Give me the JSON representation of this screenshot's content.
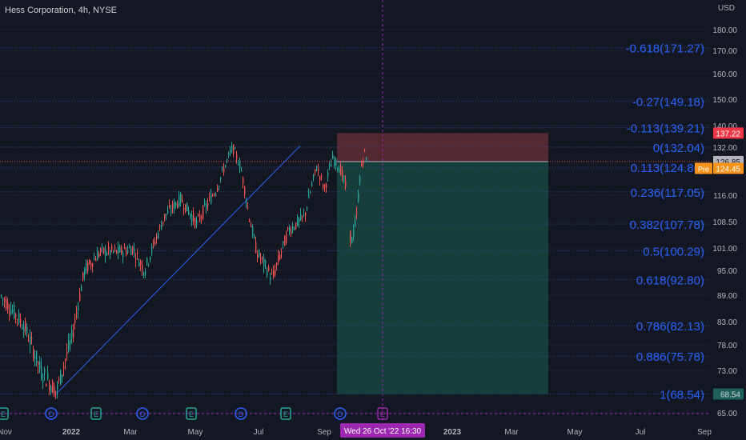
{
  "header": {
    "title": "Hess Corporation, 4h, NYSE",
    "currency": "USD"
  },
  "colors": {
    "background": "#131722",
    "grid": "#1e222d",
    "up": "#26a69a",
    "down": "#ef5350",
    "fib_text": "#2962ff",
    "fib_line": "#2c4a8c",
    "stop_zone": "#5c2a33",
    "target_zone": "#17423d",
    "current_price": "#ef5350",
    "pre_market": "#f7931a",
    "crosshair": "#9c27b0",
    "trendline": "#2962ff"
  },
  "price_axis": {
    "ticks": [
      "180.00",
      "170.00",
      "160.00",
      "150.00",
      "140.00",
      "132.00",
      "124.00",
      "116.00",
      "108.50",
      "101.00",
      "95.00",
      "89.00",
      "83.00",
      "78.00",
      "73.00",
      "65.00"
    ]
  },
  "price_labels": [
    {
      "text": "137.22",
      "kind": "stop",
      "price": 137.22
    },
    {
      "text": "126.88",
      "kind": "last",
      "price": 126.88
    },
    {
      "text": "126.85",
      "kind": "entry",
      "price": 126.85
    },
    {
      "text": "124.45",
      "kind": "pre",
      "price": 124.45,
      "tag": "Pre"
    },
    {
      "text": "68.54",
      "kind": "target",
      "price": 68.54
    }
  ],
  "fib_levels": [
    {
      "label": "-0.618(171.27)",
      "price": 171.27
    },
    {
      "label": "-0.27(149.18)",
      "price": 149.18
    },
    {
      "label": "-0.113(139.21)",
      "price": 139.21
    },
    {
      "label": "0(132.04)",
      "price": 132.04
    },
    {
      "label": "0.113(124.86)",
      "price": 124.86
    },
    {
      "label": "0.236(117.05)",
      "price": 117.05
    },
    {
      "label": "0.382(107.78)",
      "price": 107.78
    },
    {
      "label": "0.5(100.29)",
      "price": 100.29
    },
    {
      "label": "0.618(92.80)",
      "price": 92.8
    },
    {
      "label": "0.786(82.13)",
      "price": 82.13
    },
    {
      "label": "0.886(75.78)",
      "price": 75.78
    },
    {
      "label": "1(68.54)",
      "price": 68.54
    }
  ],
  "time_axis": {
    "labels": [
      "Nov",
      "2022",
      "Mar",
      "May",
      "Jul",
      "Sep",
      "2023",
      "Mar",
      "May",
      "Jul",
      "Sep"
    ],
    "crosshair_label": "Wed 26 Oct '22   16:30"
  },
  "event_markers": [
    "E",
    "D",
    "E",
    "D",
    "E",
    "D",
    "E",
    "D",
    "E"
  ],
  "chart_data": {
    "type": "candlestick",
    "title": "Hess Corporation, 4h, NYSE",
    "ylabel": "USD",
    "ylim": [
      64,
      186
    ],
    "series_path": [
      {
        "x": 0,
        "p": 89
      },
      {
        "x": 30,
        "p": 82
      },
      {
        "x": 50,
        "p": 73
      },
      {
        "x": 70,
        "p": 69
      },
      {
        "x": 90,
        "p": 80
      },
      {
        "x": 105,
        "p": 95
      },
      {
        "x": 125,
        "p": 100
      },
      {
        "x": 150,
        "p": 100
      },
      {
        "x": 165,
        "p": 101
      },
      {
        "x": 180,
        "p": 95
      },
      {
        "x": 205,
        "p": 110
      },
      {
        "x": 225,
        "p": 115
      },
      {
        "x": 245,
        "p": 108
      },
      {
        "x": 270,
        "p": 118
      },
      {
        "x": 290,
        "p": 132
      },
      {
        "x": 300,
        "p": 125
      },
      {
        "x": 310,
        "p": 111
      },
      {
        "x": 320,
        "p": 100
      },
      {
        "x": 340,
        "p": 93
      },
      {
        "x": 360,
        "p": 106
      },
      {
        "x": 380,
        "p": 110
      },
      {
        "x": 395,
        "p": 125
      },
      {
        "x": 405,
        "p": 118
      },
      {
        "x": 415,
        "p": 128
      },
      {
        "x": 425,
        "p": 124
      },
      {
        "x": 432,
        "p": 118
      },
      {
        "x": 438,
        "p": 102
      },
      {
        "x": 445,
        "p": 110
      },
      {
        "x": 450,
        "p": 124
      },
      {
        "x": 455,
        "p": 130
      },
      {
        "x": 458,
        "p": 127
      }
    ]
  }
}
